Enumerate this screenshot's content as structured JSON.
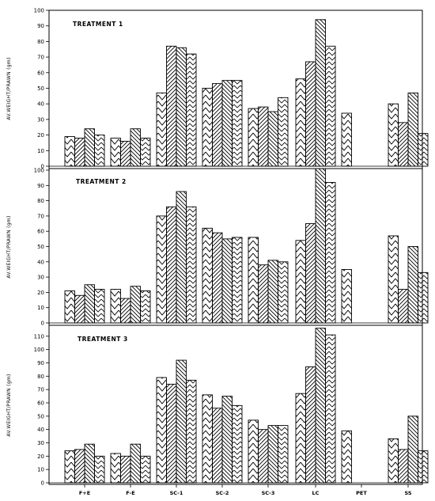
{
  "chart_data": [
    {
      "type": "bar",
      "title": "TREATMENT 1",
      "ylabel": "AV.WEIGHT/PRAWN (gm)",
      "ylim": [
        0,
        100
      ],
      "yticks": [
        0,
        10,
        20,
        30,
        40,
        50,
        60,
        70,
        80,
        90,
        100
      ],
      "categories": [
        "F+E",
        "F-E",
        "SC-1",
        "SC-2",
        "SC-3",
        "LC",
        "PET",
        "SS"
      ],
      "series": [
        {
          "values": [
            19,
            18,
            47,
            50,
            37,
            56,
            34,
            40
          ]
        },
        {
          "values": [
            18,
            16,
            77,
            53,
            38,
            67,
            null,
            28
          ]
        },
        {
          "values": [
            24,
            24,
            76,
            55,
            35,
            94,
            null,
            47
          ]
        },
        {
          "values": [
            20,
            18,
            72,
            55,
            44,
            77,
            null,
            21
          ]
        }
      ]
    },
    {
      "type": "bar",
      "title": "TREATMENT 2",
      "ylabel": "AV.WEIGHT/PRAWN (gm)",
      "ylim": [
        0,
        100
      ],
      "yticks": [
        0,
        10,
        20,
        30,
        40,
        50,
        60,
        70,
        80,
        90,
        100
      ],
      "categories": [
        "F+E",
        "F-E",
        "SC-1",
        "SC-2",
        "SC-3",
        "LC",
        "PET",
        "SS"
      ],
      "series": [
        {
          "values": [
            21,
            22,
            70,
            62,
            56,
            54,
            35,
            57
          ]
        },
        {
          "values": [
            18,
            16,
            76,
            59,
            38,
            65,
            null,
            22
          ]
        },
        {
          "values": [
            25,
            24,
            86,
            55,
            41,
            101,
            null,
            50
          ]
        },
        {
          "values": [
            22,
            21,
            76,
            56,
            40,
            92,
            null,
            33
          ]
        }
      ]
    },
    {
      "type": "bar",
      "title": "TREATMENT 3",
      "ylabel": "AV.WEIGHT/PRAWN (gm)",
      "ylim": [
        0,
        117
      ],
      "yticks": [
        0,
        10,
        20,
        30,
        40,
        50,
        60,
        70,
        80,
        90,
        100,
        110
      ],
      "categories": [
        "F+E",
        "F-E",
        "SC-1",
        "SC-2",
        "SC-3",
        "LC",
        "PET",
        "SS"
      ],
      "series": [
        {
          "values": [
            24,
            22,
            79,
            66,
            47,
            67,
            39,
            33
          ]
        },
        {
          "values": [
            25,
            20,
            74,
            56,
            40,
            87,
            null,
            25
          ]
        },
        {
          "values": [
            29,
            29,
            92,
            65,
            43,
            116,
            null,
            50
          ]
        },
        {
          "values": [
            20,
            20,
            77,
            58,
            43,
            111,
            null,
            24
          ]
        }
      ]
    }
  ]
}
